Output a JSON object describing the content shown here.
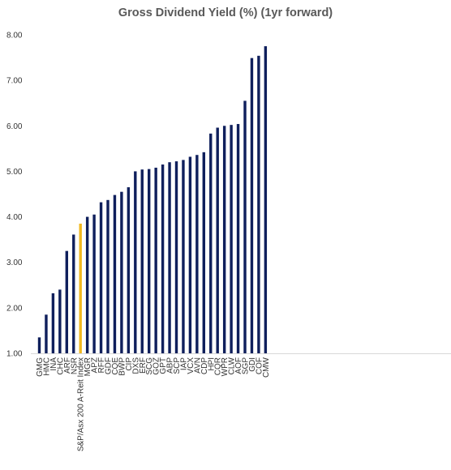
{
  "chart_data": {
    "type": "bar",
    "title": "Gross Dividend Yield (%) (1yr forward)",
    "xlabel": "",
    "ylabel": "",
    "ylim": [
      1.0,
      8.0
    ],
    "yticks": [
      "1.00",
      "2.00",
      "3.00",
      "4.00",
      "5.00",
      "6.00",
      "7.00",
      "8.00"
    ],
    "categories": [
      "GMG",
      "HMC",
      "INA",
      "CHC",
      "ARF",
      "NSR",
      "S&P/Asx 200 A-Reit Index",
      "MGR",
      "APZ",
      "RFF",
      "GDF",
      "CQE",
      "BWP",
      "CIP",
      "DXS",
      "ERF",
      "SCG",
      "GOZ",
      "GPT",
      "ABP",
      "SCP",
      "IAP",
      "VCX",
      "AVN",
      "CDP",
      "HPI",
      "CQR",
      "WPR",
      "CLW",
      "AOF",
      "SGP",
      "GDI",
      "COF",
      "CMW"
    ],
    "values": [
      1.35,
      1.85,
      2.32,
      2.4,
      3.25,
      3.61,
      3.85,
      4.0,
      4.05,
      4.32,
      4.37,
      4.48,
      4.55,
      4.65,
      5.0,
      5.04,
      5.05,
      5.08,
      5.15,
      5.2,
      5.22,
      5.25,
      5.32,
      5.36,
      5.42,
      5.83,
      5.96,
      6.0,
      6.02,
      6.04,
      6.55,
      7.49,
      7.54,
      7.75
    ],
    "highlight_category": "S&P/Asx 200 A-Reit Index",
    "colors": {
      "bar": "#0f1f5c",
      "highlight": "#f0b821",
      "axis": "#d9d9d9"
    },
    "grid": false,
    "legend": "none"
  }
}
